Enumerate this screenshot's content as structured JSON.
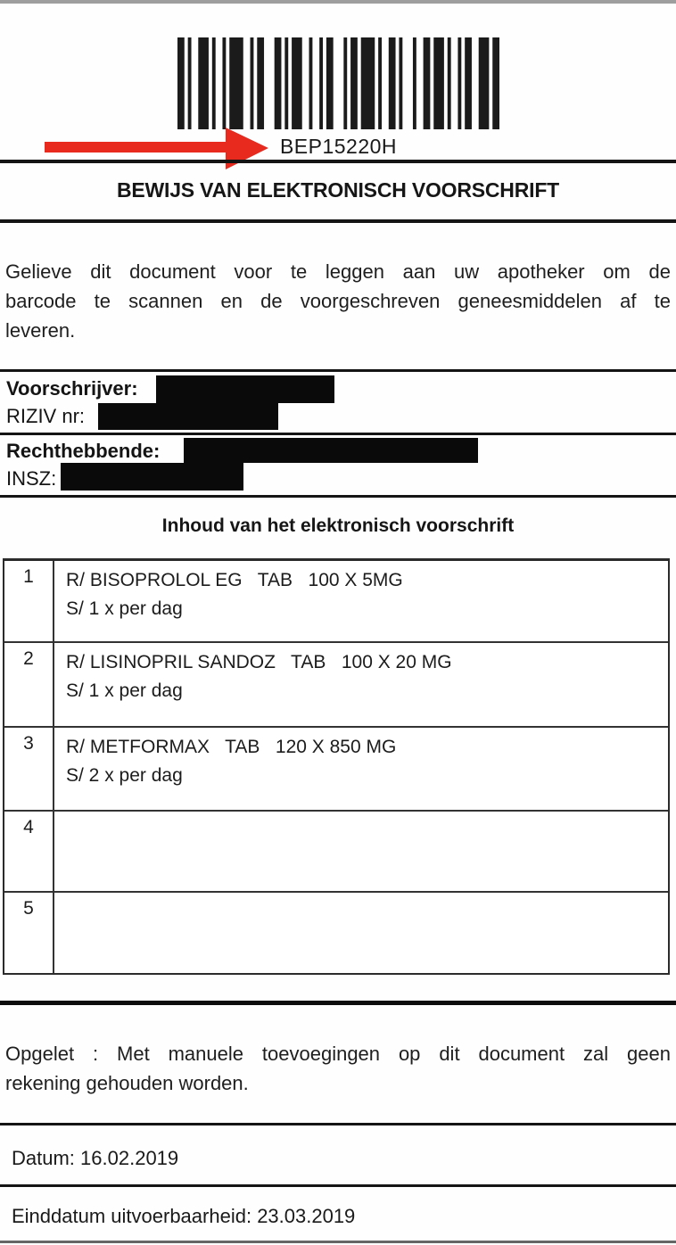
{
  "document": {
    "barcode_code": "BEP15220H",
    "title": "BEWIJS VAN ELEKTRONISCH VOORSCHRIFT",
    "intro_lines": [
      "Gelieve dit document voor te leggen aan uw apotheker om de",
      "barcode te scannen en de voorgeschreven geneesmiddelen af te",
      "leveren."
    ],
    "prescriber_label": "Voorschrijver:",
    "riziv_label": "RIZIV nr:",
    "patient_label": "Rechthebbende:",
    "insz_label": "INSZ:",
    "table_heading": "Inhoud van het elektronisch voorschrift",
    "warning_lines": [
      "Opgelet : Met manuele toevoegingen op dit document zal geen",
      "rekening gehouden worden."
    ],
    "datum_label": "Datum:",
    "datum_value": "16.02.2019",
    "einddatum_label": "Einddatum uitvoerbaarheid:",
    "einddatum_value": "23.03.2019"
  },
  "prescriptions": [
    {
      "num": "1",
      "line1": "R/ BISOPROLOL EG   TAB   100 X 5MG",
      "line2": "S/ 1 x per dag"
    },
    {
      "num": "2",
      "line1": "R/ LISINOPRIL SANDOZ   TAB   100 X 20 MG",
      "line2": "S/ 1 x per dag"
    },
    {
      "num": "3",
      "line1": "R/ METFORMAX   TAB   120 X 850 MG",
      "line2": "S/ 2 x per dag"
    },
    {
      "num": "4",
      "line1": "",
      "line2": ""
    },
    {
      "num": "5",
      "line1": "",
      "line2": ""
    }
  ],
  "colors": {
    "arrow_red": "#e8291e",
    "bar_black": "#1b1b1b",
    "line_black": "#141414"
  }
}
